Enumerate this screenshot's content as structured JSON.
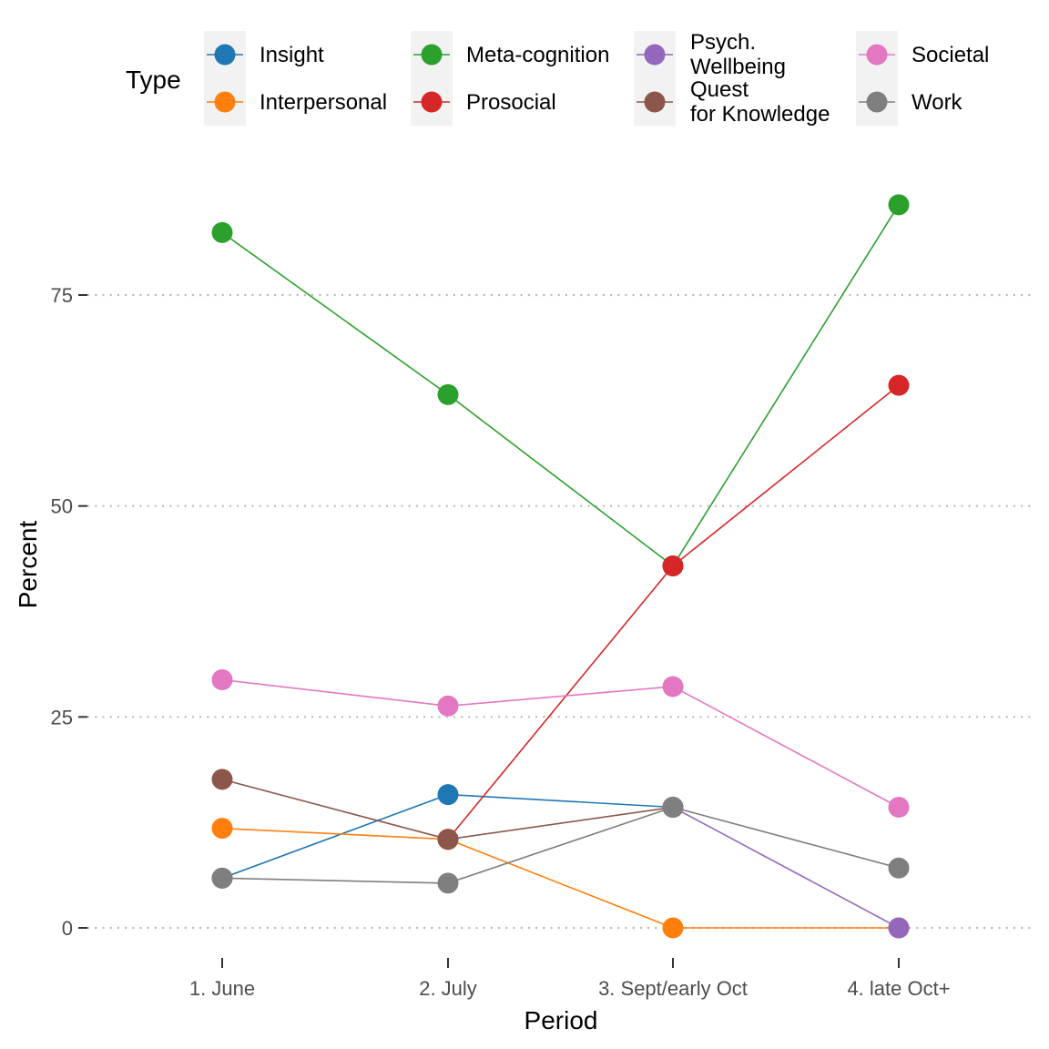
{
  "chart_data": {
    "type": "line",
    "xlabel": "Period",
    "ylabel": "Percent",
    "categories": [
      "1. June",
      "2. July",
      "3. Sept/early Oct",
      "4. late Oct+"
    ],
    "ylim": [
      -4.5,
      84
    ],
    "yticks": [
      0,
      25,
      50,
      75
    ],
    "grid": "horizontal dotted at major ticks",
    "legend": {
      "title": "Type",
      "placement": "top",
      "entries": [
        {
          "label": "Insight",
          "color": "#1f77b4"
        },
        {
          "label": "Interpersonal",
          "color": "#ff7f0e"
        },
        {
          "label": "Meta-cognition",
          "color": "#2ca02c"
        },
        {
          "label": "Prosocial",
          "color": "#d62728"
        },
        {
          "label": "Psych.\nWellbeing",
          "color": "#9467bd"
        },
        {
          "label": "Quest\nfor Knowledge",
          "color": "#8c564b"
        },
        {
          "label": "Societal",
          "color": "#e377c2"
        },
        {
          "label": "Work",
          "color": "#7f7f7f"
        }
      ]
    },
    "series": [
      {
        "name": "Insight",
        "color": "#1f77b4",
        "values": [
          5.9,
          15.8,
          14.3,
          null
        ]
      },
      {
        "name": "Interpersonal",
        "color": "#ff7f0e",
        "values": [
          11.8,
          10.5,
          0,
          0
        ]
      },
      {
        "name": "Meta-cognition",
        "color": "#2ca02c",
        "values": [
          82.4,
          63.2,
          42.9,
          85.7
        ]
      },
      {
        "name": "Prosocial",
        "color": "#d62728",
        "values": [
          null,
          10.5,
          42.9,
          64.3
        ]
      },
      {
        "name": "Psych.\nWellbeing",
        "color": "#9467bd",
        "values": [
          null,
          null,
          14.3,
          0
        ]
      },
      {
        "name": "Quest\nfor Knowledge",
        "color": "#8c564b",
        "values": [
          17.6,
          10.5,
          14.3,
          null
        ]
      },
      {
        "name": "Societal",
        "color": "#e377c2",
        "values": [
          29.4,
          26.3,
          28.6,
          14.3
        ]
      },
      {
        "name": "Work",
        "color": "#7f7f7f",
        "values": [
          5.9,
          5.3,
          14.3,
          7.1
        ]
      }
    ]
  }
}
